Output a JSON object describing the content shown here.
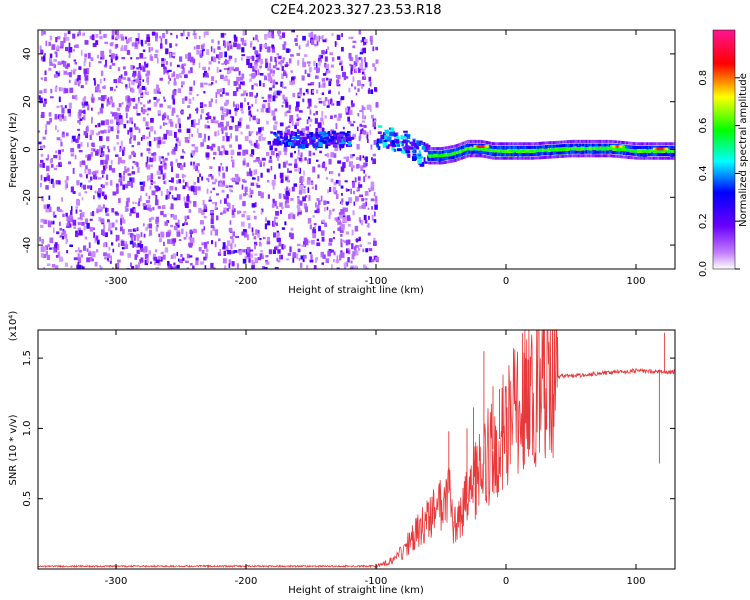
{
  "figure": {
    "title": "C2E4.2023.327.23.53.R18"
  },
  "chart_data": [
    {
      "type": "heatmap",
      "xlabel": "Height of straight line (km)",
      "ylabel": "Frequency (Hz)",
      "xlim": [
        -360,
        130
      ],
      "ylim": [
        -50,
        50
      ],
      "x_ticks": [
        -300,
        -200,
        -100,
        0,
        100
      ],
      "y_ticks": [
        -40,
        -20,
        0,
        20,
        40
      ],
      "colorbar": {
        "label": "Normalized spectral amplitude",
        "range": [
          0,
          1
        ],
        "ticks": [
          0.0,
          0.2,
          0.4,
          0.6,
          0.8
        ],
        "colors": [
          "#ffffff",
          "#9b30ff",
          "#0000ff",
          "#00ffff",
          "#00ff00",
          "#ffff00",
          "#ff0000",
          "#ff1493"
        ]
      },
      "regions": [
        {
          "x_range": [
            -360,
            -100
          ],
          "freq_range": [
            -50,
            50
          ],
          "amplitude": 0.12
        },
        {
          "x_range": [
            -180,
            -120
          ],
          "freq_range": [
            0,
            10
          ],
          "amplitude": 0.35
        },
        {
          "x_range": [
            -100,
            -60
          ],
          "freq_range": [
            -5,
            10
          ],
          "amplitude": 0.4
        },
        {
          "x_range": [
            -60,
            130
          ],
          "freq_range": [
            -2,
            3
          ],
          "amplitude": 0.6
        }
      ],
      "ridge": [
        {
          "x": -100,
          "f": 6
        },
        {
          "x": -90,
          "f": 5
        },
        {
          "x": -80,
          "f": 4
        },
        {
          "x": -70,
          "f": 0
        },
        {
          "x": -60,
          "f": -2
        },
        {
          "x": -50,
          "f": -2
        },
        {
          "x": -40,
          "f": -1
        },
        {
          "x": -30,
          "f": 1
        },
        {
          "x": -20,
          "f": 1
        },
        {
          "x": -10,
          "f": 0
        },
        {
          "x": 0,
          "f": 0
        },
        {
          "x": 20,
          "f": 0
        },
        {
          "x": 50,
          "f": 1
        },
        {
          "x": 80,
          "f": 1
        },
        {
          "x": 100,
          "f": 0
        },
        {
          "x": 130,
          "f": 0
        }
      ],
      "peaks": [
        {
          "x": -20,
          "f": 1,
          "amplitude": 0.95
        },
        {
          "x": 85,
          "f": 1,
          "amplitude": 0.85
        },
        {
          "x": 118,
          "f": 0,
          "amplitude": 0.95
        }
      ]
    },
    {
      "type": "line",
      "xlabel": "Height of straight line (km)",
      "ylabel": "SNR (10 * v/v)",
      "y_multiplier": "(x10⁴)",
      "xlim": [
        -360,
        130
      ],
      "ylim": [
        0,
        1.7
      ],
      "x_ticks": [
        -300,
        -200,
        -100,
        0,
        100
      ],
      "y_ticks": [
        0.5,
        1.0,
        1.5
      ],
      "y_tick_labels": [
        "0.5",
        "1.0",
        "1.5"
      ],
      "color": "#e8393a",
      "envelope": [
        {
          "x": -360,
          "y": 0.02
        },
        {
          "x": -100,
          "y": 0.02
        },
        {
          "x": -90,
          "y": 0.05
        },
        {
          "x": -80,
          "y": 0.12
        },
        {
          "x": -70,
          "y": 0.25
        },
        {
          "x": -60,
          "y": 0.35
        },
        {
          "x": -50,
          "y": 0.45
        },
        {
          "x": -45,
          "y": 0.6
        },
        {
          "x": -40,
          "y": 0.3
        },
        {
          "x": -30,
          "y": 0.5
        },
        {
          "x": -20,
          "y": 0.7
        },
        {
          "x": -10,
          "y": 0.85
        },
        {
          "x": 0,
          "y": 1.0
        },
        {
          "x": 10,
          "y": 1.15
        },
        {
          "x": 20,
          "y": 1.25
        },
        {
          "x": 30,
          "y": 1.33
        },
        {
          "x": 40,
          "y": 1.37
        },
        {
          "x": 60,
          "y": 1.38
        },
        {
          "x": 80,
          "y": 1.4
        },
        {
          "x": 100,
          "y": 1.41
        },
        {
          "x": 130,
          "y": 1.4
        }
      ],
      "spikes": [
        {
          "x": -44,
          "y": 0.98
        },
        {
          "x": -30,
          "y": 1.0
        },
        {
          "x": -25,
          "y": 1.15
        },
        {
          "x": -17,
          "y": 1.55
        },
        {
          "x": -10,
          "y": 1.3
        },
        {
          "x": -5,
          "y": 1.28
        },
        {
          "x": 118,
          "y": 0.75
        },
        {
          "x": 122,
          "y": 1.68
        }
      ]
    }
  ]
}
